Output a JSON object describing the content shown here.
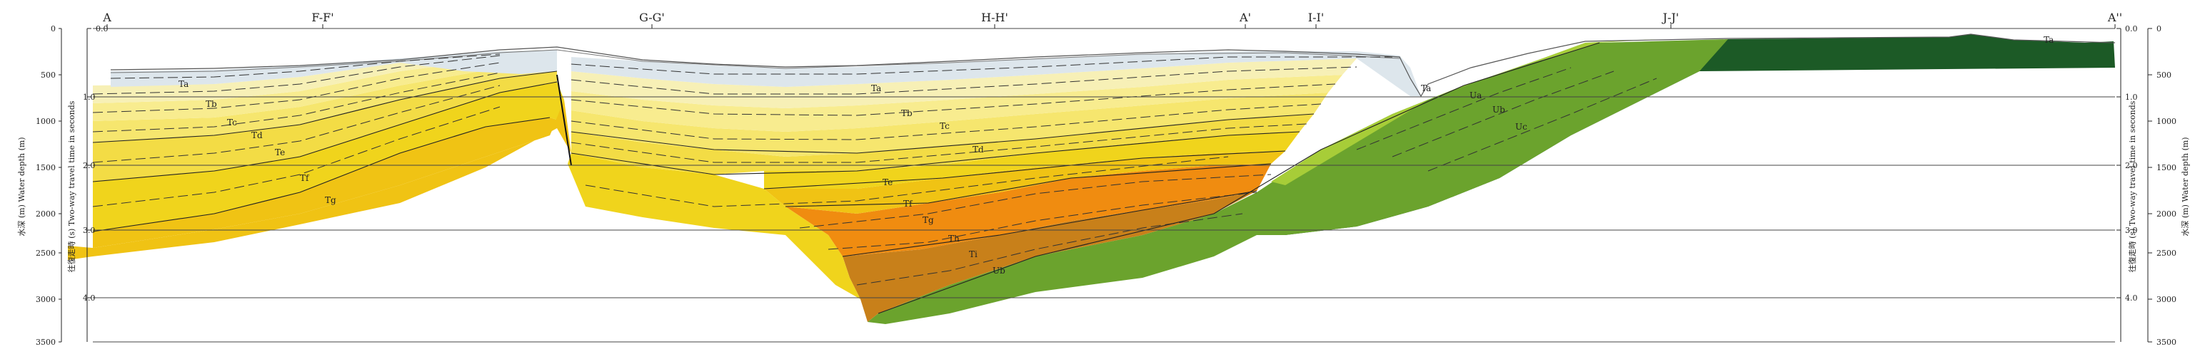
{
  "section": {
    "locations": [
      "A",
      "F-F'",
      "G-G'",
      "H-H'",
      "A'",
      "I-I'",
      "J-J'",
      "A''"
    ],
    "depth_ticks": [
      "0",
      "500",
      "1000",
      "1500",
      "2000",
      "2500",
      "3000",
      "3500"
    ],
    "time_ticks": [
      "0.0",
      "1.0",
      "2.0",
      "3.0",
      "4.0"
    ],
    "left_axis": {
      "depth_label": "水深 (m)  Water depth (m)",
      "time_label": "往復走時 (s)  Two-way travel time in seconds"
    },
    "right_axis": {
      "time_label": "往復走時 (s)  Two-way travel time in seconds",
      "depth_label": "水深 (m)  Water depth (m)"
    },
    "layer_labels": [
      "Ta",
      "Tb",
      "Tc",
      "Td",
      "Te",
      "Tf",
      "Tg",
      "Th",
      "Ti",
      "Ua",
      "Ub",
      "Uc"
    ],
    "colors": {
      "Ta": "#dde6ec",
      "Tb": "#f7f0b6",
      "Tc": "#f8ec8f",
      "Td": "#f6e66e",
      "Te": "#f3dc45",
      "Tf": "#f0d41c",
      "Tg": "#f0c314",
      "Th": "#f08c10",
      "Ti": "#c8801a",
      "Ua": "#a7cd38",
      "Ub": "#6ba32d",
      "Uc": "#1c5a26"
    }
  }
}
